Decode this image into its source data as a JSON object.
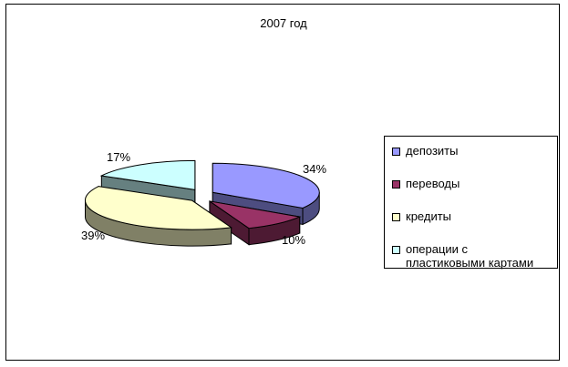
{
  "chart_data": {
    "type": "pie",
    "title": "2007 год",
    "slices": [
      {
        "label": "депозиты",
        "value": 34,
        "data_label": "34%",
        "color": "#9999FF",
        "side_color": "#4D4D80"
      },
      {
        "label": "переводы",
        "value": 10,
        "data_label": "10%",
        "color": "#993366",
        "side_color": "#4D1A33"
      },
      {
        "label": "кредиты",
        "value": 39,
        "data_label": "39%",
        "color": "#FFFFCC",
        "side_color": "#808066"
      },
      {
        "label": "операции с пластиковыми картами",
        "value": 17,
        "data_label": "17%",
        "color": "#CCFFFF",
        "side_color": "#668080"
      }
    ],
    "style": "3d-exploded",
    "legend_position": "right"
  },
  "legend": {
    "items": [
      {
        "label": "депозиты",
        "color": "#9999FF"
      },
      {
        "label": "переводы",
        "color": "#993366"
      },
      {
        "label": "кредиты",
        "color": "#FFFFCC"
      },
      {
        "label": "операции с\nпластиковыми картами",
        "color": "#CCFFFF"
      }
    ]
  }
}
